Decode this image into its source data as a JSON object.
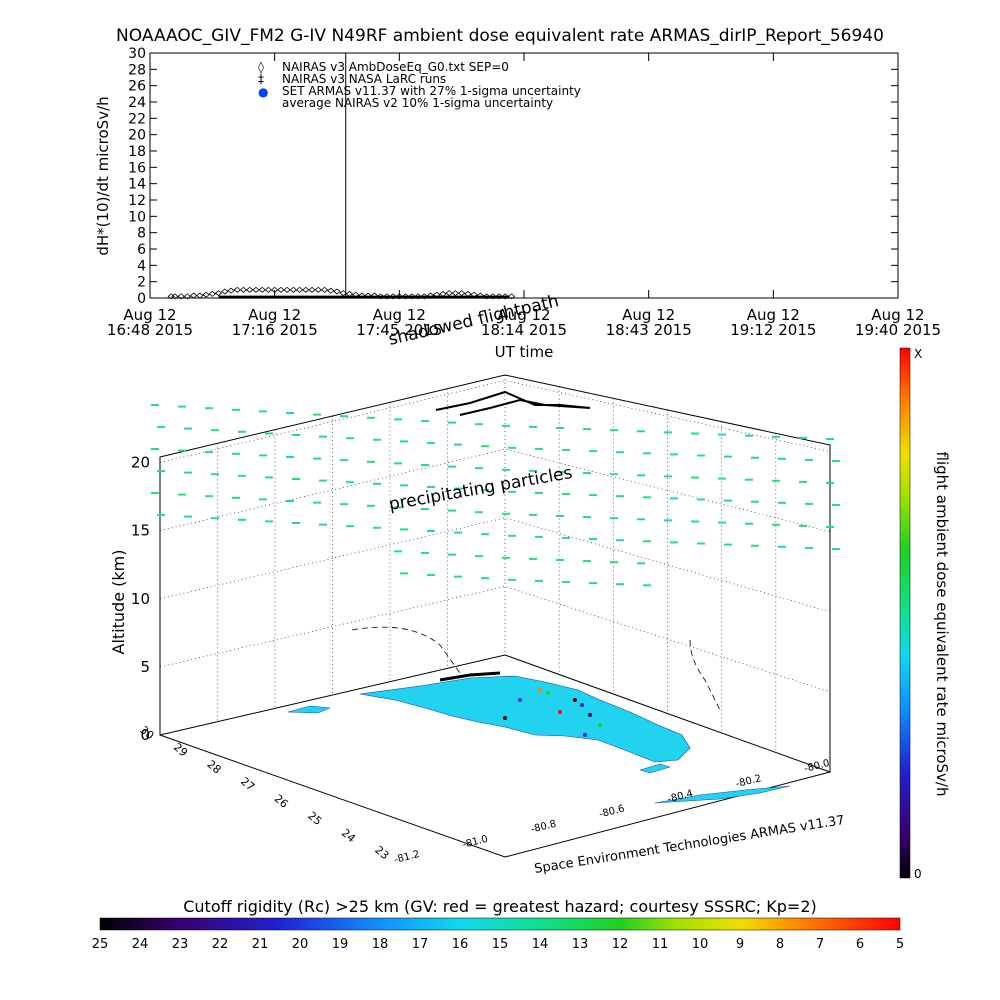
{
  "title": "NOAAAOC_GIV_FM2 G-IV   N49RF  ambient dose equivalent rate ARMAS_dirIP_Report_56940",
  "colors": {
    "green_marks": "#22e07a",
    "land": "#22d3f0",
    "flight": "#000000"
  },
  "chart_data": [
    {
      "type": "line",
      "ylabel": "dH*(10)/dt microSv/h",
      "xlabel": "UT time",
      "ylim": [
        0,
        30
      ],
      "yticks": [
        "0",
        "2",
        "4",
        "6",
        "8",
        "10",
        "12",
        "14",
        "16",
        "18",
        "20",
        "22",
        "24",
        "26",
        "28",
        "30"
      ],
      "xticks": [
        {
          "date": "Aug 12",
          "time": "16:48 2015"
        },
        {
          "date": "Aug 12",
          "time": "17:16 2015"
        },
        {
          "date": "Aug 12",
          "time": "17:45 2015"
        },
        {
          "date": "Aug 12",
          "time": "18:14 2015"
        },
        {
          "date": "Aug 12",
          "time": "18:43 2015"
        },
        {
          "date": "Aug 12",
          "time": "19:12 2015"
        },
        {
          "date": "Aug 12",
          "time": "19:40 2015"
        }
      ],
      "legend": [
        {
          "symbol": "◊",
          "label": "NAIRAS v3 AmbDoseEq_G0.txt SEP=0"
        },
        {
          "symbol": "‡",
          "label": "NAIRAS v3 NASA LaRC runs"
        },
        {
          "symbol": "●",
          "label": "SET ARMAS v11.37 with 27% 1-sigma uncertainty"
        },
        {
          "symbol": "",
          "label": "average NAIRAS v2 10% 1-sigma uncertainty"
        }
      ],
      "series": [
        {
          "name": "NAIRAS v3 AmbDoseEq_G0.txt SEP=0",
          "x": [
            0.17,
            0.2,
            0.25,
            0.3,
            0.35,
            0.4,
            0.45,
            0.5,
            0.55,
            0.6,
            0.65,
            0.7,
            0.75,
            0.8,
            0.85,
            0.9,
            0.95,
            1.0,
            1.05,
            1.1,
            1.15,
            1.2,
            1.25,
            1.3,
            1.35,
            1.4,
            1.45,
            1.5,
            1.55,
            1.6,
            1.65,
            1.7,
            1.75,
            1.8,
            1.85,
            1.9,
            1.95,
            2.0,
            2.05,
            2.1,
            2.15,
            2.2,
            2.25,
            2.3,
            2.35,
            2.4,
            2.45,
            2.5,
            2.55,
            2.6,
            2.65,
            2.7,
            2.75,
            2.8,
            2.85,
            2.9
          ],
          "values": [
            0.2,
            0.2,
            0.2,
            0.2,
            0.3,
            0.3,
            0.4,
            0.5,
            0.6,
            0.8,
            0.9,
            1.0,
            1.0,
            1.0,
            1.0,
            1.0,
            1.0,
            1.0,
            1.0,
            1.0,
            1.0,
            1.0,
            1.0,
            1.0,
            1.0,
            1.0,
            0.9,
            0.8,
            0.6,
            0.5,
            0.4,
            0.3,
            0.3,
            0.3,
            0.2,
            0.2,
            0.2,
            0.2,
            0.2,
            0.2,
            0.2,
            0.2,
            0.3,
            0.4,
            0.5,
            0.6,
            0.6,
            0.6,
            0.5,
            0.4,
            0.3,
            0.2,
            0.2,
            0.2,
            0.2,
            0.2
          ]
        },
        {
          "name": "SET ARMAS v11.37 with 27% 1-sigma uncertainty",
          "x": [
            0.55,
            0.7,
            0.85,
            1.0,
            1.15,
            1.3,
            1.45,
            1.6,
            1.75,
            1.85,
            1.95,
            2.05,
            2.15,
            2.3,
            2.45,
            2.6,
            2.75,
            2.88
          ],
          "values": [
            0.1,
            0.1,
            0.1,
            0.1,
            0.1,
            0.1,
            0.1,
            0.1,
            0.1,
            0.1,
            0.1,
            0.1,
            0.1,
            0.1,
            0.1,
            0.1,
            0.1,
            0.1
          ]
        }
      ],
      "vline_index": 1.57
    },
    {
      "type": "scatter",
      "ylabel": "Altitude (km)",
      "zticks": [
        "0",
        "5",
        "10",
        "15",
        "20"
      ],
      "lat_ticks": [
        "30",
        "29",
        "28",
        "27",
        "26",
        "25",
        "24",
        "23"
      ],
      "lon_ticks": [
        "-81.2",
        "-81.0",
        "-80.8",
        "-80.6",
        "-80.4",
        "-80.2",
        "-80.0"
      ],
      "annotations": [
        "precipitating particles",
        "shadowed flightpath"
      ],
      "credit": "Space Environment Technologies ARMAS v11.37",
      "colorbar": {
        "label": "flight ambient dose equivalent rate microSv/h",
        "top": "X",
        "bottom": "0"
      }
    },
    {
      "type": "heatmap",
      "label": "Cutoff rigidity (Rc) >25 km (GV: red = greatest hazard; courtesy SSSRC; Kp=2)",
      "ticks": [
        "25",
        "24",
        "23",
        "22",
        "21",
        "20",
        "19",
        "18",
        "17",
        "16",
        "15",
        "14",
        "13",
        "12",
        "11",
        "10",
        "9",
        "8",
        "7",
        "6",
        "5"
      ]
    }
  ]
}
